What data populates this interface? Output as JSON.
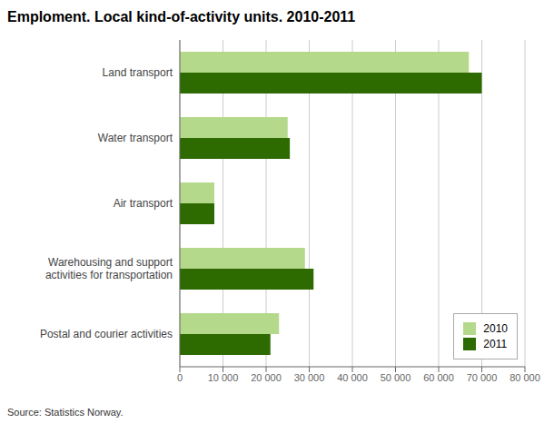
{
  "chart_data": {
    "type": "bar",
    "orientation": "horizontal",
    "title": "Emploment. Local kind-of-activity units. 2010-2011",
    "categories": [
      "Land transport",
      "Water transport",
      "Air transport",
      "Warehousing and support\nactivities for transportation",
      "Postal and courier activities"
    ],
    "series": [
      {
        "name": "2010",
        "color": "#b5d98b",
        "values": [
          67000,
          25000,
          8000,
          29000,
          23000
        ]
      },
      {
        "name": "2011",
        "color": "#2d6a00",
        "values": [
          70000,
          25500,
          8000,
          31000,
          21000
        ]
      }
    ],
    "xlim": [
      0,
      80000
    ],
    "xticks": [
      0,
      {
        "value": 10000,
        "label": "10 000"
      },
      {
        "value": 20000,
        "label": "20 000"
      },
      {
        "value": 30000,
        "label": "30 000"
      },
      {
        "value": 40000,
        "label": "40 000"
      },
      {
        "value": 50000,
        "label": "50 000"
      },
      {
        "value": 60000,
        "label": "60 000"
      },
      {
        "value": 70000,
        "label": "70 000"
      },
      {
        "value": 80000,
        "label": "80 000"
      }
    ],
    "grid": true,
    "legend": "lower right",
    "annotations": [
      "Source: Statistics Norway."
    ]
  }
}
